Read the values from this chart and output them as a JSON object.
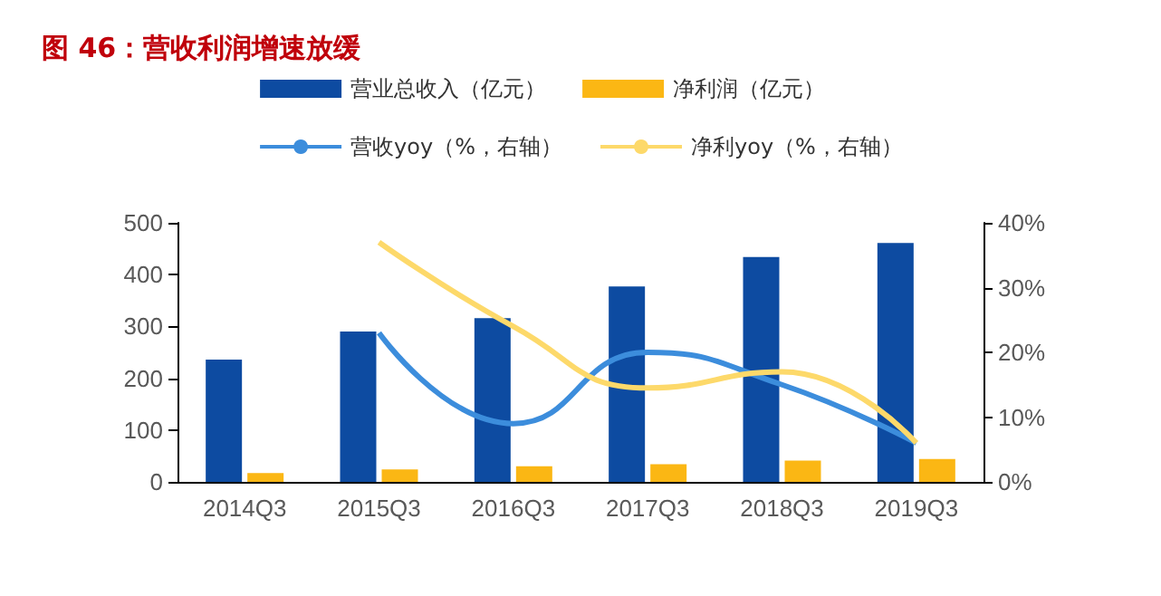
{
  "chart_data": {
    "type": "bar",
    "title": "图 46：营收利润增速放缓",
    "categories": [
      "2014Q3",
      "2015Q3",
      "2016Q3",
      "2017Q3",
      "2018Q3",
      "2019Q3"
    ],
    "series": [
      {
        "name": "营业总收入（亿元）",
        "color": "#0d4ba1",
        "values": [
          236,
          290,
          316,
          377,
          434,
          461
        ]
      },
      {
        "name": "净利润（亿元）",
        "color": "#fbb714",
        "values": [
          17,
          24,
          30,
          34,
          41,
          44
        ]
      },
      {
        "name": "营收yoy（%，右轴）",
        "type": "line",
        "axis": "y2",
        "color": "#3c8ddc",
        "values": [
          null,
          23,
          9,
          20,
          15,
          6
        ]
      },
      {
        "name": "净利yoy（%，右轴）",
        "type": "line",
        "axis": "y2",
        "color": "#fdd96a",
        "values": [
          null,
          37,
          24,
          14.5,
          17,
          6
        ]
      }
    ],
    "ylim": [
      0,
      500
    ],
    "yticks": [
      0,
      100,
      200,
      300,
      400,
      500
    ],
    "y2lim": [
      0,
      40
    ],
    "y2ticks": [
      {
        "value": 0,
        "label": "0%"
      },
      {
        "value": 10,
        "label": "10%"
      },
      {
        "value": 20,
        "label": "20%"
      },
      {
        "value": 30,
        "label": "30%"
      },
      {
        "value": 40,
        "label": "40%"
      }
    ],
    "grid": false,
    "legend": "top",
    "marker": "none",
    "line_style": "solid"
  }
}
